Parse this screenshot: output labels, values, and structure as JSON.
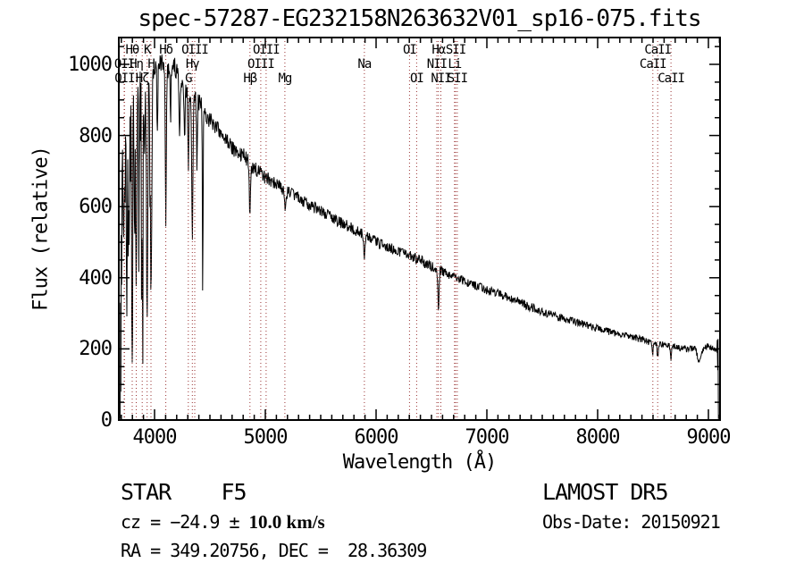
{
  "title": "spec-57287-EG232158N263632V01_sp16-075.fits",
  "axes": {
    "x": {
      "label": "Wavelength (Å)",
      "ticks": [
        4000,
        5000,
        6000,
        7000,
        8000,
        9000
      ],
      "minor_step": 100,
      "minor_start": 3700,
      "minor_end": 9100
    },
    "y": {
      "label": "Flux (relative)",
      "ticks": [
        0,
        200,
        400,
        600,
        800,
        1000
      ],
      "minor_step": 50,
      "minor_end": 1050
    }
  },
  "annotations": {
    "object_type": "STAR",
    "subclass": "F5",
    "cz_prefix": "cz = −24.9 ± ",
    "cz_value": "10.0 km/s",
    "radec": "RA = 349.20756, DEC =  28.36309",
    "survey": "LAMOST DR5",
    "obs_date": "Obs-Date: 20150921"
  },
  "colors": {
    "background": "#ffffff",
    "spectrum": "#000000",
    "line_marker": "#9a3232",
    "axis": "#000000",
    "text": "#000000"
  },
  "chart_data": {
    "type": "line",
    "title": "spec-57287-EG232158N263632V01_sp16-075.fits",
    "xlabel": "Wavelength (Å)",
    "ylabel": "Flux (relative)",
    "xlim": [
      3677,
      9105
    ],
    "ylim": [
      0,
      1075
    ],
    "x_ticks": [
      4000,
      5000,
      6000,
      7000,
      8000,
      9000
    ],
    "y_ticks": [
      0,
      200,
      400,
      600,
      800,
      1000
    ],
    "grid": false,
    "legend": false,
    "continuum": [
      [
        3690,
        850
      ],
      [
        3750,
        880
      ],
      [
        3800,
        910
      ],
      [
        3850,
        930
      ],
      [
        3900,
        950
      ],
      [
        3950,
        970
      ],
      [
        4000,
        985
      ],
      [
        4060,
        1005
      ],
      [
        4120,
        985
      ],
      [
        4180,
        995
      ],
      [
        4240,
        950
      ],
      [
        4300,
        925
      ],
      [
        4360,
        900
      ],
      [
        4420,
        885
      ],
      [
        4500,
        845
      ],
      [
        4600,
        805
      ],
      [
        4700,
        765
      ],
      [
        4800,
        745
      ],
      [
        4900,
        705
      ],
      [
        5000,
        685
      ],
      [
        5100,
        663
      ],
      [
        5200,
        642
      ],
      [
        5300,
        624
      ],
      [
        5400,
        606
      ],
      [
        5500,
        586
      ],
      [
        5600,
        568
      ],
      [
        5700,
        552
      ],
      [
        5800,
        536
      ],
      [
        5900,
        518
      ],
      [
        6000,
        500
      ],
      [
        6100,
        488
      ],
      [
        6200,
        476
      ],
      [
        6300,
        462
      ],
      [
        6400,
        449
      ],
      [
        6500,
        432
      ],
      [
        6600,
        416
      ],
      [
        6700,
        404
      ],
      [
        6800,
        391
      ],
      [
        6900,
        378
      ],
      [
        7000,
        366
      ],
      [
        7100,
        355
      ],
      [
        7200,
        344
      ],
      [
        7300,
        330
      ],
      [
        7400,
        317
      ],
      [
        7500,
        305
      ],
      [
        7600,
        294
      ],
      [
        7700,
        284
      ],
      [
        7800,
        276
      ],
      [
        7900,
        266
      ],
      [
        8000,
        257
      ],
      [
        8100,
        249
      ],
      [
        8200,
        242
      ],
      [
        8300,
        234
      ],
      [
        8400,
        226
      ],
      [
        8500,
        216
      ],
      [
        8600,
        211
      ],
      [
        8700,
        206
      ],
      [
        8800,
        199
      ],
      [
        8900,
        203
      ],
      [
        9000,
        208
      ],
      [
        9060,
        195
      ],
      [
        9085,
        215
      ]
    ],
    "spectral_lines": [
      {
        "label": "OII",
        "wavelength": 3726,
        "row": 2
      },
      {
        "label": "OII",
        "wavelength": 3729,
        "row": 3
      },
      {
        "label": "Hθ",
        "wavelength": 3798,
        "row": 1
      },
      {
        "label": "Hη",
        "wavelength": 3835,
        "row": 2
      },
      {
        "label": "Hζ",
        "wavelength": 3889,
        "row": 3
      },
      {
        "label": "K",
        "wavelength": 3933,
        "row": 1
      },
      {
        "label": "H",
        "wavelength": 3968,
        "row": 2
      },
      {
        "label": "Hδ",
        "wavelength": 4102,
        "row": 1
      },
      {
        "label": "G",
        "wavelength": 4305,
        "row": 3
      },
      {
        "label": "Hγ",
        "wavelength": 4341,
        "row": 2
      },
      {
        "label": "OIII",
        "wavelength": 4363,
        "row": 1
      },
      {
        "label": "Hβ",
        "wavelength": 4861,
        "row": 3
      },
      {
        "label": "OIII",
        "wavelength": 4959,
        "row": 2
      },
      {
        "label": "OIII",
        "wavelength": 5007,
        "row": 1
      },
      {
        "label": "Mg",
        "wavelength": 5177,
        "row": 3
      },
      {
        "label": "Na",
        "wavelength": 5894,
        "row": 2
      },
      {
        "label": "OI",
        "wavelength": 6302,
        "row": 1
      },
      {
        "label": "OI",
        "wavelength": 6366,
        "row": 3
      },
      {
        "label": "NII",
        "wavelength": 6548,
        "row": 2
      },
      {
        "label": "Hα",
        "wavelength": 6563,
        "row": 1
      },
      {
        "label": "NII",
        "wavelength": 6585,
        "row": 3
      },
      {
        "label": "Li",
        "wavelength": 6708,
        "row": 2
      },
      {
        "label": "SII",
        "wavelength": 6718,
        "row": 1
      },
      {
        "label": "SII",
        "wavelength": 6733,
        "row": 3
      },
      {
        "label": "CaII",
        "wavelength": 8498,
        "row": 2
      },
      {
        "label": "CaII",
        "wavelength": 8542,
        "row": 1
      },
      {
        "label": "CaII",
        "wavelength": 8662,
        "row": 3
      }
    ],
    "absorption_features": [
      {
        "wavelength": 3726,
        "depth": 250,
        "sigma": 6
      },
      {
        "wavelength": 3750,
        "depth": 560,
        "sigma": 5
      },
      {
        "wavelength": 3770,
        "depth": 420,
        "sigma": 4
      },
      {
        "wavelength": 3798,
        "depth": 460,
        "sigma": 5
      },
      {
        "wavelength": 3820,
        "depth": 350,
        "sigma": 4
      },
      {
        "wavelength": 3835,
        "depth": 520,
        "sigma": 5
      },
      {
        "wavelength": 3860,
        "depth": 300,
        "sigma": 4
      },
      {
        "wavelength": 3889,
        "depth": 560,
        "sigma": 5
      },
      {
        "wavelength": 3910,
        "depth": 250,
        "sigma": 4
      },
      {
        "wavelength": 3933,
        "depth": 640,
        "sigma": 6
      },
      {
        "wavelength": 3968,
        "depth": 620,
        "sigma": 6
      },
      {
        "wavelength": 4026,
        "depth": 200,
        "sigma": 4
      },
      {
        "wavelength": 4102,
        "depth": 420,
        "sigma": 5
      },
      {
        "wavelength": 4144,
        "depth": 150,
        "sigma": 4
      },
      {
        "wavelength": 4226,
        "depth": 180,
        "sigma": 4
      },
      {
        "wavelength": 4271,
        "depth": 150,
        "sigma": 4
      },
      {
        "wavelength": 4305,
        "depth": 200,
        "sigma": 5
      },
      {
        "wavelength": 4341,
        "depth": 400,
        "sigma": 5
      },
      {
        "wavelength": 4383,
        "depth": 180,
        "sigma": 4
      },
      {
        "wavelength": 4435,
        "depth": 560,
        "sigma": 3
      },
      {
        "wavelength": 4861,
        "depth": 140,
        "sigma": 5
      },
      {
        "wavelength": 5177,
        "depth": 45,
        "sigma": 8
      },
      {
        "wavelength": 5894,
        "depth": 55,
        "sigma": 5
      },
      {
        "wavelength": 6563,
        "depth": 125,
        "sigma": 5
      },
      {
        "wavelength": 8498,
        "depth": 28,
        "sigma": 5
      },
      {
        "wavelength": 8542,
        "depth": 38,
        "sigma": 5
      },
      {
        "wavelength": 8662,
        "depth": 35,
        "sigma": 5
      },
      {
        "wavelength": 8920,
        "depth": 40,
        "sigma": 18
      }
    ],
    "edge_start": [
      [
        3690,
        3
      ],
      [
        3693,
        330
      ],
      [
        3696,
        80
      ],
      [
        3699,
        520
      ],
      [
        3703,
        380
      ],
      [
        3707,
        700
      ],
      [
        3711,
        760
      ]
    ],
    "edge_end": [
      [
        9076,
        190
      ],
      [
        9080,
        225
      ],
      [
        9084,
        140
      ],
      [
        9087,
        228
      ],
      [
        9090,
        3
      ]
    ]
  }
}
